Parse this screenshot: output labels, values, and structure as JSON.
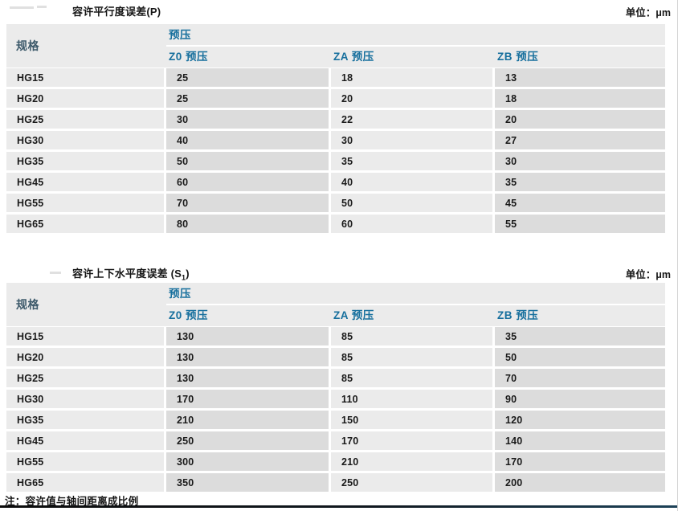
{
  "page": {
    "unit_label": "单位：μm",
    "note": "注：容许值与轴间距离成比例",
    "colors": {
      "header_text": "#166f9d",
      "spec_header_text": "#3d5a6b",
      "column_light": "#ebebeb",
      "column_dark": "#dcdcdc",
      "data_text": "#1a1a1a",
      "bottom_bar": "#10181f"
    }
  },
  "tables": [
    {
      "title": "容许平行度误差(P)",
      "title_sub": "",
      "title_end": "",
      "header": {
        "spec": "规格",
        "group": "预压",
        "cols": [
          "Z0 预压",
          "ZA 预压",
          "ZB 预压"
        ]
      },
      "rows": [
        {
          "spec": "HG15",
          "values": [
            "25",
            "18",
            "13"
          ]
        },
        {
          "spec": "HG20",
          "values": [
            "25",
            "20",
            "18"
          ]
        },
        {
          "spec": "HG25",
          "values": [
            "30",
            "22",
            "20"
          ]
        },
        {
          "spec": "HG30",
          "values": [
            "40",
            "30",
            "27"
          ]
        },
        {
          "spec": "HG35",
          "values": [
            "50",
            "35",
            "30"
          ]
        },
        {
          "spec": "HG45",
          "values": [
            "60",
            "40",
            "35"
          ]
        },
        {
          "spec": "HG55",
          "values": [
            "70",
            "50",
            "45"
          ]
        },
        {
          "spec": "HG65",
          "values": [
            "80",
            "60",
            "55"
          ]
        }
      ]
    },
    {
      "title": "容许上下水平度误差 (S",
      "title_sub": "1",
      "title_end": ")",
      "header": {
        "spec": "规格",
        "group": "预压",
        "cols": [
          "Z0 预压",
          "ZA 预压",
          "ZB 预压"
        ]
      },
      "rows": [
        {
          "spec": "HG15",
          "values": [
            "130",
            "85",
            "35"
          ]
        },
        {
          "spec": "HG20",
          "values": [
            "130",
            "85",
            "50"
          ]
        },
        {
          "spec": "HG25",
          "values": [
            "130",
            "85",
            "70"
          ]
        },
        {
          "spec": "HG30",
          "values": [
            "170",
            "110",
            "90"
          ]
        },
        {
          "spec": "HG35",
          "values": [
            "210",
            "150",
            "120"
          ]
        },
        {
          "spec": "HG45",
          "values": [
            "250",
            "170",
            "140"
          ]
        },
        {
          "spec": "HG55",
          "values": [
            "300",
            "210",
            "170"
          ]
        },
        {
          "spec": "HG65",
          "values": [
            "350",
            "250",
            "200"
          ]
        }
      ]
    }
  ]
}
